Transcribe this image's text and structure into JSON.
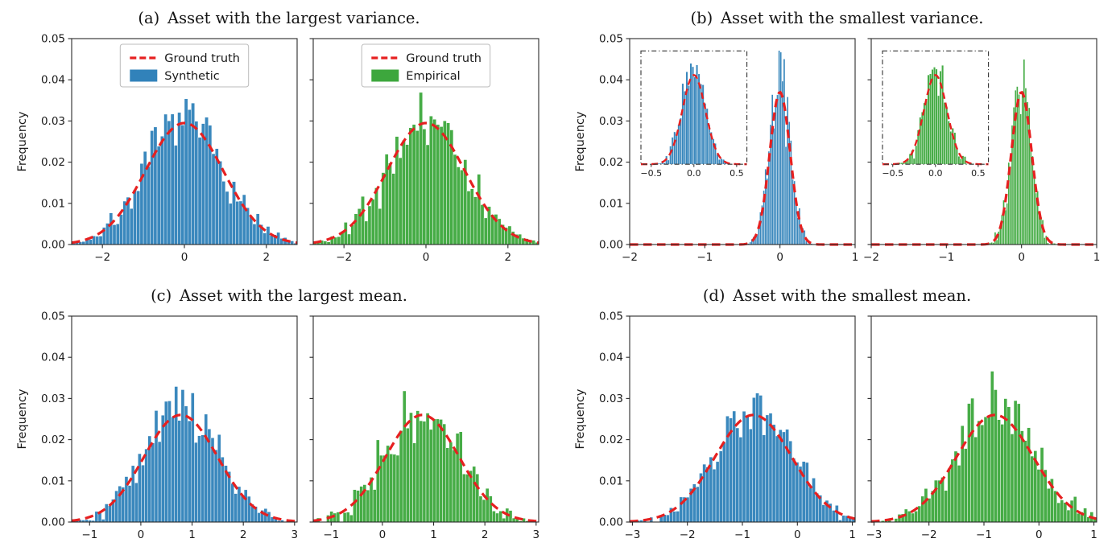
{
  "figure": {
    "background": "#ffffff",
    "text_color": "#1a1a1a",
    "spine_color": "#2a2a2a",
    "ground_truth": {
      "label": "Ground truth",
      "color": "#e62020",
      "linestyle": "dashed"
    }
  },
  "chart_data": [
    {
      "id": "a",
      "type": "histogram",
      "caption": "(a) Asset with the largest variance.",
      "ylabel": "Frequency",
      "ylim": [
        0,
        0.05
      ],
      "yticks": [
        0,
        0.01,
        0.02,
        0.03,
        0.04,
        0.05
      ],
      "ytick_labels": [
        "0.00",
        "0.01",
        "0.02",
        "0.03",
        "0.04",
        "0.05"
      ],
      "panels": [
        {
          "name": "synthetic",
          "color": "#1f77b4",
          "xlim": [
            -2.75,
            2.75
          ],
          "xticks": [
            -2,
            0,
            2
          ],
          "xtick_labels": [
            "−2",
            "0",
            "2"
          ],
          "mean": 0,
          "std": 0.95,
          "curve_peak": 0.0295,
          "bar_peak": 0.0305,
          "bins": 66,
          "noise": 1.0,
          "seed": 7,
          "show_ytick_labels": true,
          "legend": [
            {
              "label": "Ground truth",
              "marker": "dashed-line",
              "color": "#e62020"
            },
            {
              "label": "Synthetic",
              "marker": "patch",
              "color": "#1f77b4"
            }
          ]
        },
        {
          "name": "empirical",
          "color": "#2ca02c",
          "xlim": [
            -2.75,
            2.75
          ],
          "xticks": [
            -2,
            0,
            2
          ],
          "xtick_labels": [
            "−2",
            "0",
            "2"
          ],
          "mean": 0,
          "std": 0.95,
          "curve_peak": 0.0295,
          "bar_peak": 0.0305,
          "bins": 66,
          "noise": 1.3,
          "seed": 21,
          "show_ytick_labels": false,
          "legend": [
            {
              "label": "Ground truth",
              "marker": "dashed-line",
              "color": "#e62020"
            },
            {
              "label": "Empirical",
              "marker": "patch",
              "color": "#2ca02c"
            }
          ]
        }
      ]
    },
    {
      "id": "b",
      "type": "histogram",
      "caption": "(b) Asset with the smallest variance.",
      "ylabel": "Frequency",
      "ylim": [
        0,
        0.05
      ],
      "yticks": [
        0,
        0.01,
        0.02,
        0.03,
        0.04,
        0.05
      ],
      "ytick_labels": [
        "0.00",
        "0.01",
        "0.02",
        "0.03",
        "0.04",
        "0.05"
      ],
      "panels": [
        {
          "name": "synthetic",
          "color": "#1f77b4",
          "xlim": [
            -2,
            1
          ],
          "xticks": [
            -2,
            -1,
            0,
            1
          ],
          "xtick_labels": [
            "−2",
            "−1",
            "0",
            "1"
          ],
          "mean": 0,
          "std": 0.135,
          "curve_peak": 0.037,
          "bar_peak": 0.04,
          "bins": 40,
          "noise": 1.0,
          "seed": 33,
          "show_ytick_labels": true,
          "inset": {
            "rect": [
              0.05,
              0.06,
              0.47,
              0.55
            ],
            "xlim": [
              -0.62,
              0.62
            ],
            "ylim": [
              0,
              0.047
            ],
            "xticks": [
              -0.5,
              0,
              0.5
            ],
            "xtick_labels": [
              "−0.5",
              "0.0",
              "0.5"
            ],
            "bins": 38
          }
        },
        {
          "name": "empirical",
          "color": "#2ca02c",
          "xlim": [
            -2,
            1
          ],
          "xticks": [
            -2,
            -1,
            0,
            1
          ],
          "xtick_labels": [
            "−2",
            "−1",
            "0",
            "1"
          ],
          "mean": 0,
          "std": 0.135,
          "curve_peak": 0.037,
          "bar_peak": 0.04,
          "bins": 40,
          "noise": 1.15,
          "seed": 44,
          "show_ytick_labels": false,
          "inset": {
            "rect": [
              0.05,
              0.06,
              0.47,
              0.55
            ],
            "xlim": [
              -0.62,
              0.62
            ],
            "ylim": [
              0,
              0.047
            ],
            "xticks": [
              -0.5,
              0,
              0.5
            ],
            "xtick_labels": [
              "−0.5",
              "0.0",
              "0.5"
            ],
            "bins": 38
          }
        }
      ]
    },
    {
      "id": "c",
      "type": "histogram",
      "caption": "(c) Asset with the largest mean.",
      "ylabel": "Frequency",
      "ylim": [
        0,
        0.05
      ],
      "yticks": [
        0,
        0.01,
        0.02,
        0.03,
        0.04,
        0.05
      ],
      "ytick_labels": [
        "0.00",
        "0.01",
        "0.02",
        "0.03",
        "0.04",
        "0.05"
      ],
      "panels": [
        {
          "name": "synthetic",
          "color": "#1f77b4",
          "xlim": [
            -1.35,
            3.05
          ],
          "xticks": [
            -1,
            0,
            1,
            2,
            3
          ],
          "xtick_labels": [
            "−1",
            "0",
            "1",
            "2",
            "3"
          ],
          "mean": 0.78,
          "std": 0.72,
          "curve_peak": 0.026,
          "bar_peak": 0.0285,
          "bins": 68,
          "noise": 1.1,
          "seed": 55,
          "show_ytick_labels": true
        },
        {
          "name": "empirical",
          "color": "#2ca02c",
          "xlim": [
            -1.35,
            3.05
          ],
          "xticks": [
            -1,
            0,
            1,
            2,
            3
          ],
          "xtick_labels": [
            "−1",
            "0",
            "1",
            "2",
            "3"
          ],
          "mean": 0.78,
          "std": 0.72,
          "curve_peak": 0.026,
          "bar_peak": 0.0285,
          "bins": 68,
          "noise": 1.4,
          "seed": 66,
          "show_ytick_labels": false
        }
      ]
    },
    {
      "id": "d",
      "type": "histogram",
      "caption": "(d) Asset with the smallest mean.",
      "ylabel": "Frequency",
      "ylim": [
        0,
        0.05
      ],
      "yticks": [
        0,
        0.01,
        0.02,
        0.03,
        0.04,
        0.05
      ],
      "ytick_labels": [
        "0.00",
        "0.01",
        "0.02",
        "0.03",
        "0.04",
        "0.05"
      ],
      "panels": [
        {
          "name": "synthetic",
          "color": "#1f77b4",
          "xlim": [
            -3.05,
            1.05
          ],
          "xticks": [
            -3,
            -2,
            -1,
            0,
            1
          ],
          "xtick_labels": [
            "−3",
            "−2",
            "−1",
            "0",
            "1"
          ],
          "mean": -0.8,
          "std": 0.7,
          "curve_peak": 0.026,
          "bar_peak": 0.0285,
          "bins": 68,
          "noise": 1.1,
          "seed": 77,
          "show_ytick_labels": true
        },
        {
          "name": "empirical",
          "color": "#2ca02c",
          "xlim": [
            -3.05,
            1.05
          ],
          "xticks": [
            -3,
            -2,
            -1,
            0,
            1
          ],
          "xtick_labels": [
            "−3",
            "−2",
            "−1",
            "0",
            "1"
          ],
          "mean": -0.8,
          "std": 0.7,
          "curve_peak": 0.026,
          "bar_peak": 0.0285,
          "bins": 68,
          "noise": 1.4,
          "seed": 88,
          "show_ytick_labels": false
        }
      ]
    }
  ]
}
